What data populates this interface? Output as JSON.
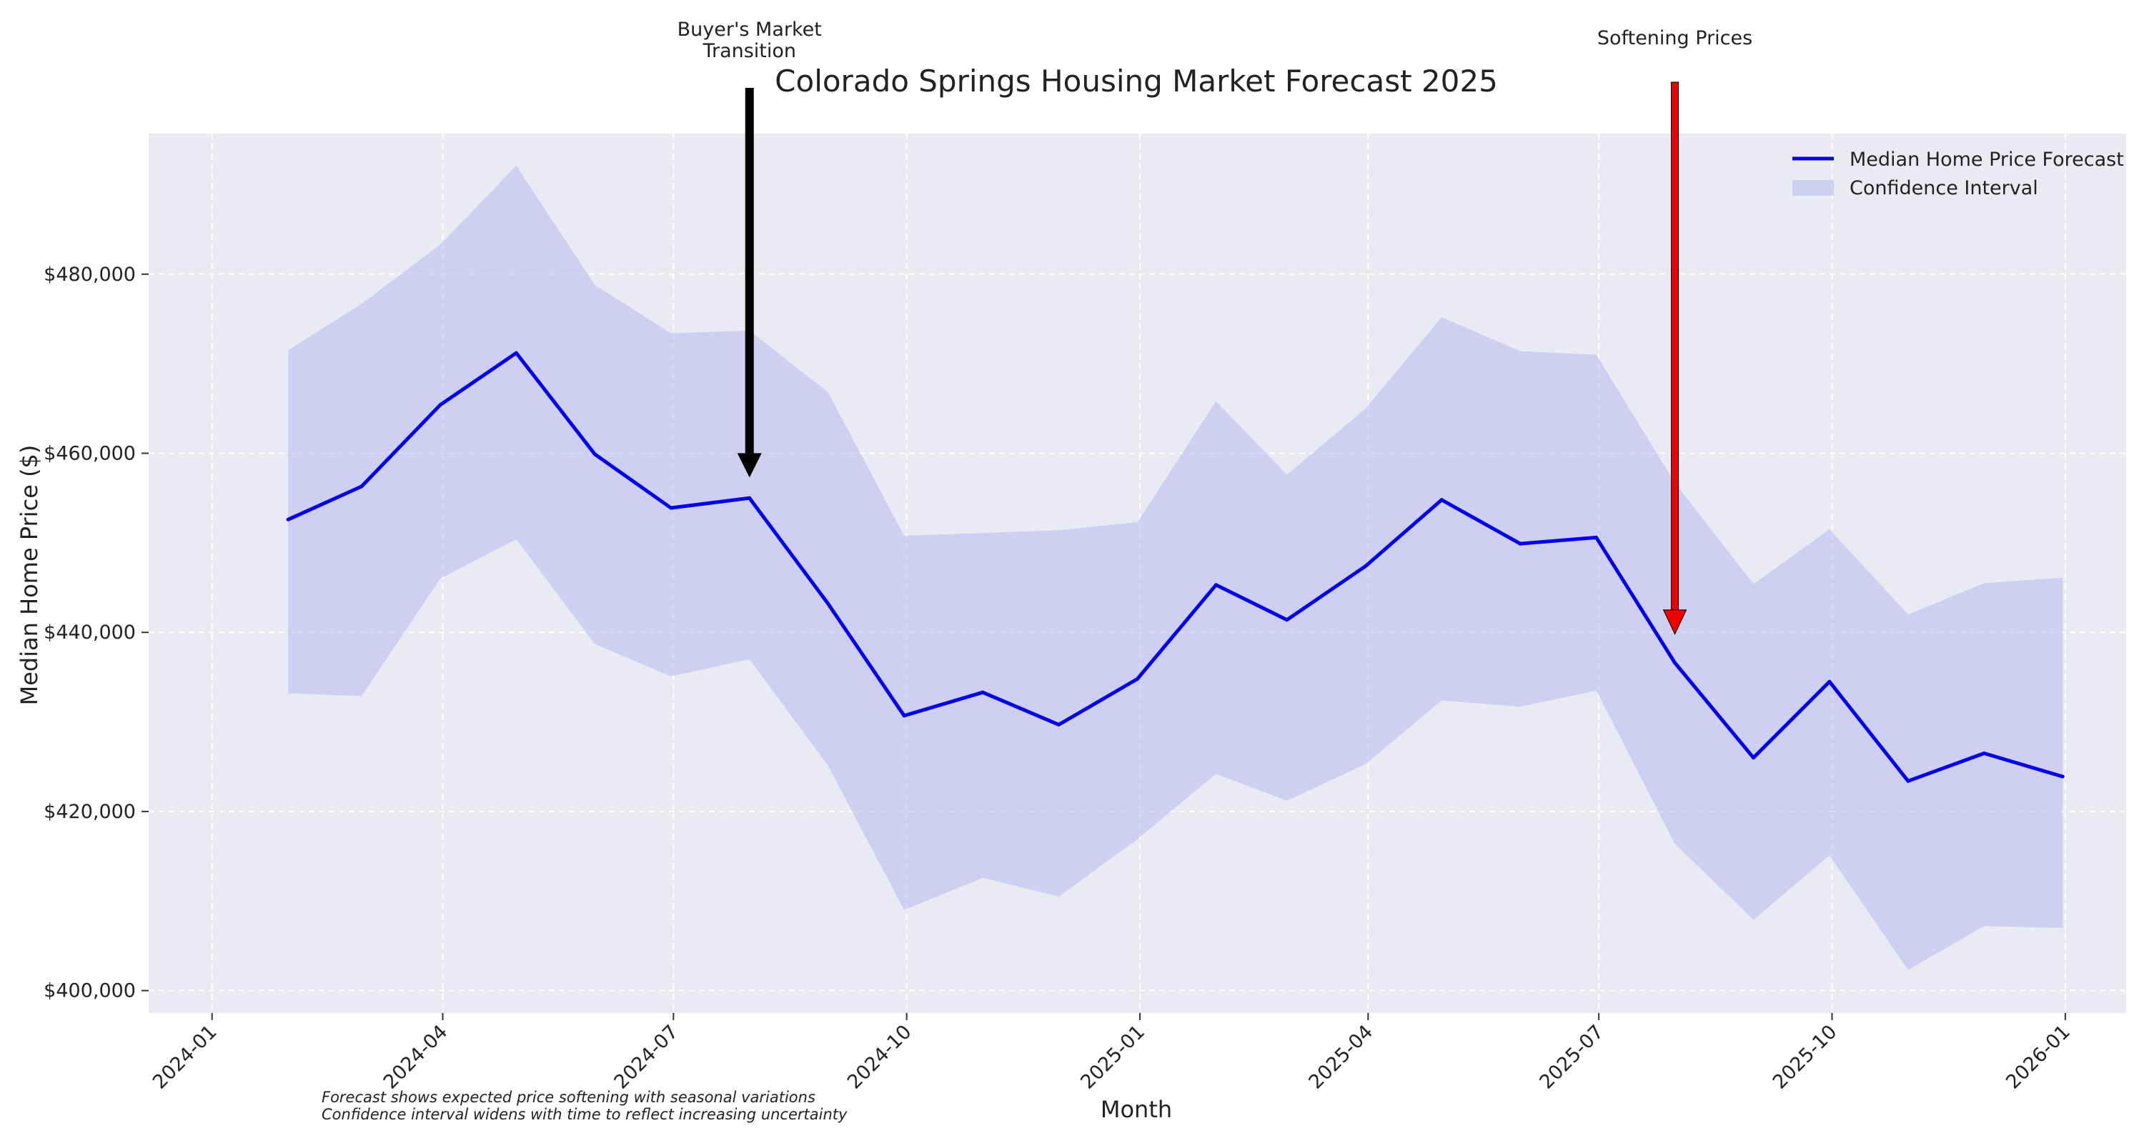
{
  "chart_data": {
    "type": "line",
    "title": "Colorado Springs Housing Market Forecast 2025",
    "xlabel": "Month",
    "ylabel": "Median Home Price ($)",
    "x_tick_labels": [
      "2024-01",
      "2024-04",
      "2024-07",
      "2024-10",
      "2025-01",
      "2025-04",
      "2025-07",
      "2025-10",
      "2026-01"
    ],
    "y_tick_labels": [
      "$400,000",
      "$420,000",
      "$440,000",
      "$460,000",
      "$480,000"
    ],
    "x_ticks": [
      "2024-01-01",
      "2024-04-01",
      "2024-07-01",
      "2024-10-01",
      "2025-01-01",
      "2025-04-01",
      "2025-07-01",
      "2025-10-01",
      "2026-01-01"
    ],
    "y_ticks": [
      400000,
      420000,
      440000,
      460000,
      480000
    ],
    "xlim": [
      "2023-12-07",
      "2026-01-25"
    ],
    "ylim": [
      397500,
      495700
    ],
    "grid": true,
    "legend_position": "top-right",
    "x": [
      "2024-01-31",
      "2024-02-29",
      "2024-03-31",
      "2024-04-30",
      "2024-05-31",
      "2024-06-30",
      "2024-07-31",
      "2024-08-31",
      "2024-09-30",
      "2024-10-31",
      "2024-11-30",
      "2024-12-31",
      "2025-01-31",
      "2025-02-28",
      "2025-03-31",
      "2025-04-30",
      "2025-05-31",
      "2025-06-30",
      "2025-07-31",
      "2025-08-31",
      "2025-09-30",
      "2025-10-31",
      "2025-11-30",
      "2025-12-31"
    ],
    "series": [
      {
        "name": "Median Home Price Forecast",
        "color": "#0000ee",
        "values": [
          452600,
          456300,
          465400,
          471200,
          459900,
          453900,
          455000,
          443200,
          430700,
          433300,
          429700,
          434800,
          445300,
          441400,
          447400,
          454800,
          449900,
          450600,
          436600,
          426000,
          434500,
          423400,
          426500,
          423900
        ]
      },
      {
        "name": "Confidence Interval",
        "type": "band",
        "color": "#b8b8f2",
        "upper": [
          471500,
          476700,
          483300,
          492100,
          478800,
          473400,
          473700,
          466800,
          450800,
          451100,
          451400,
          452300,
          465800,
          457600,
          465000,
          475200,
          471400,
          471000,
          456700,
          445400,
          451500,
          442000,
          445500,
          446100
        ],
        "lower": [
          433200,
          432900,
          446000,
          450400,
          438700,
          435100,
          437000,
          425100,
          409000,
          412600,
          410500,
          416900,
          424200,
          421200,
          425300,
          432400,
          431700,
          433500,
          416400,
          407900,
          415100,
          402300,
          407200,
          407000
        ]
      }
    ],
    "annotations": [
      {
        "lines": [
          "Buyer's Market",
          "Transition"
        ],
        "x": "2024-07-31",
        "y": 457300,
        "color": "#000000"
      },
      {
        "lines": [
          "Softening Prices"
        ],
        "x": "2025-07-31",
        "y": 439800,
        "color": "#ee0000"
      }
    ],
    "footnotes": [
      "Forecast shows expected price softening with seasonal variations",
      "Confidence interval widens with time to reflect increasing uncertainty"
    ]
  }
}
